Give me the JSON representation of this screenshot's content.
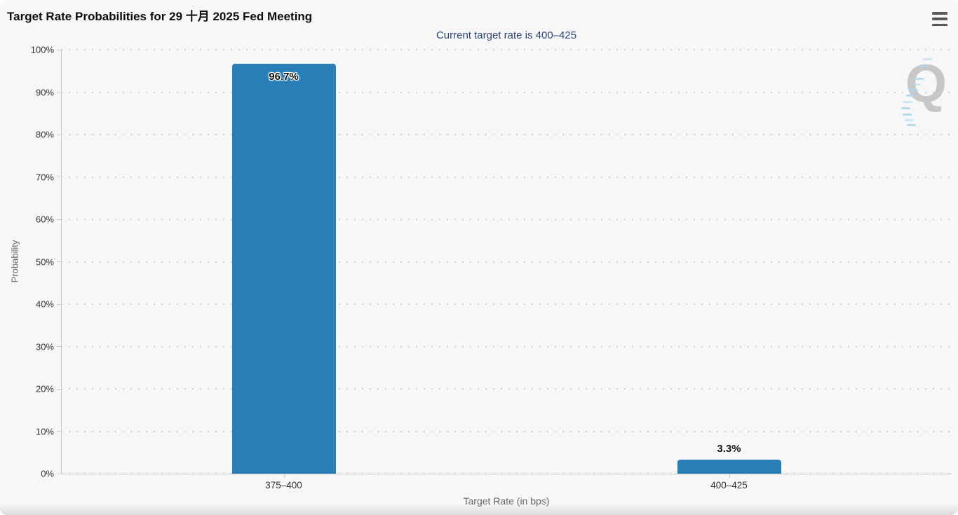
{
  "header": {
    "title": "Target Rate Probabilities for 29 十月 2025 Fed Meeting",
    "subtitle": "Current target rate is 400–425"
  },
  "watermark": {
    "letter": "Q"
  },
  "chart_data": {
    "type": "bar",
    "title": "Target Rate Probabilities for 29 十月 2025 Fed Meeting",
    "subtitle": "Current target rate is 400–425",
    "categories": [
      "375–400",
      "400–425"
    ],
    "values": [
      96.7,
      3.3
    ],
    "value_labels": [
      "96.7%",
      "3.3%"
    ],
    "xlabel": "Target Rate (in bps)",
    "ylabel": "Probability",
    "ylim": [
      0,
      100
    ],
    "y_ticks": [
      {
        "value": 0,
        "label": "0%"
      },
      {
        "value": 10,
        "label": "10%"
      },
      {
        "value": 20,
        "label": "20%"
      },
      {
        "value": 30,
        "label": "30%"
      },
      {
        "value": 40,
        "label": "40%"
      },
      {
        "value": 50,
        "label": "50%"
      },
      {
        "value": 60,
        "label": "60%"
      },
      {
        "value": 70,
        "label": "70%"
      },
      {
        "value": 80,
        "label": "80%"
      },
      {
        "value": 90,
        "label": "90%"
      },
      {
        "value": 100,
        "label": "100%"
      }
    ],
    "grid": "dotted-horizontal",
    "legend": "none"
  },
  "colors": {
    "background": "#f7f7f8",
    "bar": "#2a7eb8",
    "title": "#0d0d0d",
    "subtitle": "#2e4875",
    "axis_line": "#c9c9c9",
    "grid_dot": "#d2d2d2",
    "tick_label": "#333333",
    "axis_title": "#666666",
    "watermark_letter": "#c7c7c7",
    "watermark_dash": "#aed7f0",
    "menu_icon": "#5a5a5a"
  }
}
